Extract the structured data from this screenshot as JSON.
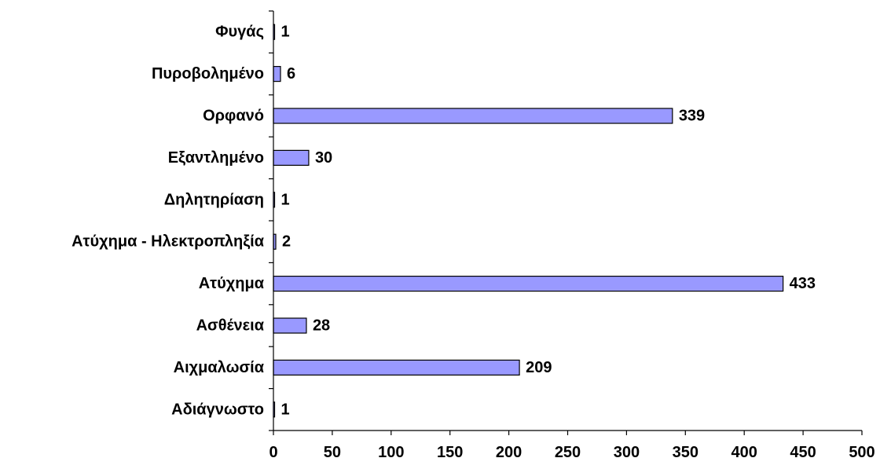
{
  "chart_data": {
    "type": "bar",
    "orientation": "horizontal",
    "title": "",
    "xlabel": "",
    "ylabel": "",
    "categories": [
      "Αδιάγνωστο",
      "Αιχμαλωσία",
      "Ασθένεια",
      "Ατύχημα",
      "Ατύχημα - Ηλεκτροπληξία",
      "Δηλητηρίαση",
      "Εξαντλημένο",
      "Ορφανό",
      "Πυροβολημένο",
      "Φυγάς"
    ],
    "values": [
      1,
      209,
      28,
      433,
      2,
      1,
      30,
      339,
      6,
      1
    ],
    "value_labels": [
      "1",
      "209",
      "28",
      "433",
      "2",
      "1",
      "30",
      "339",
      "6",
      "1"
    ],
    "xlim": [
      0,
      500
    ],
    "xticks": [
      "0",
      "50",
      "100",
      "150",
      "200",
      "250",
      "300",
      "350",
      "400",
      "450",
      "500"
    ],
    "category_order": "bottom-to-top",
    "grid": false,
    "legend": "none",
    "bar_color": "#9999ff",
    "bar_edge_color": "#000000"
  }
}
